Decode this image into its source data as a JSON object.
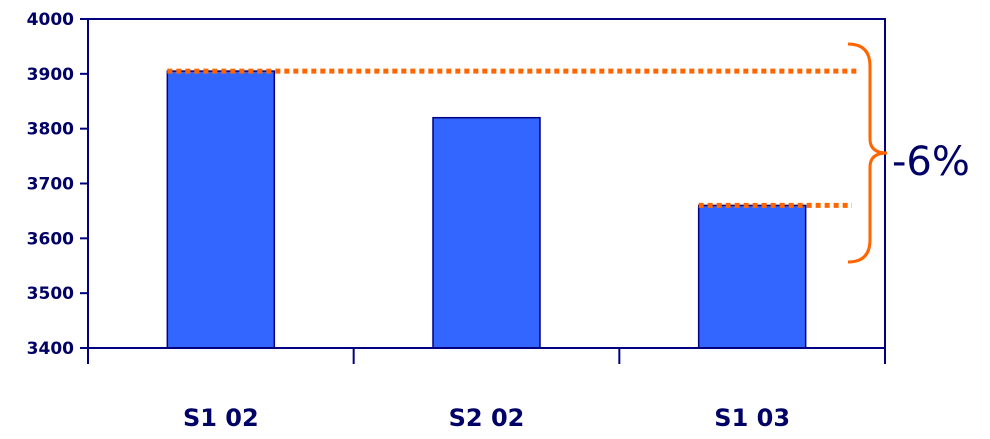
{
  "chart_data": {
    "type": "bar",
    "categories": [
      "S1 02",
      "S2 02",
      "S1 03"
    ],
    "values": [
      3905,
      3820,
      3660
    ],
    "ylim": [
      3400,
      4000
    ],
    "yticks": [
      3400,
      3500,
      3600,
      3700,
      3800,
      3900,
      4000
    ],
    "title": "",
    "xlabel": "",
    "ylabel": "",
    "grid": false,
    "annotation": {
      "text": "-6%",
      "from_value": 3905,
      "to_value": 3660
    },
    "colors": {
      "bar": "#3366ff",
      "bar_stroke": "#000080",
      "axis": "#000080",
      "reference": "#ff6600",
      "text": "#000066"
    }
  }
}
